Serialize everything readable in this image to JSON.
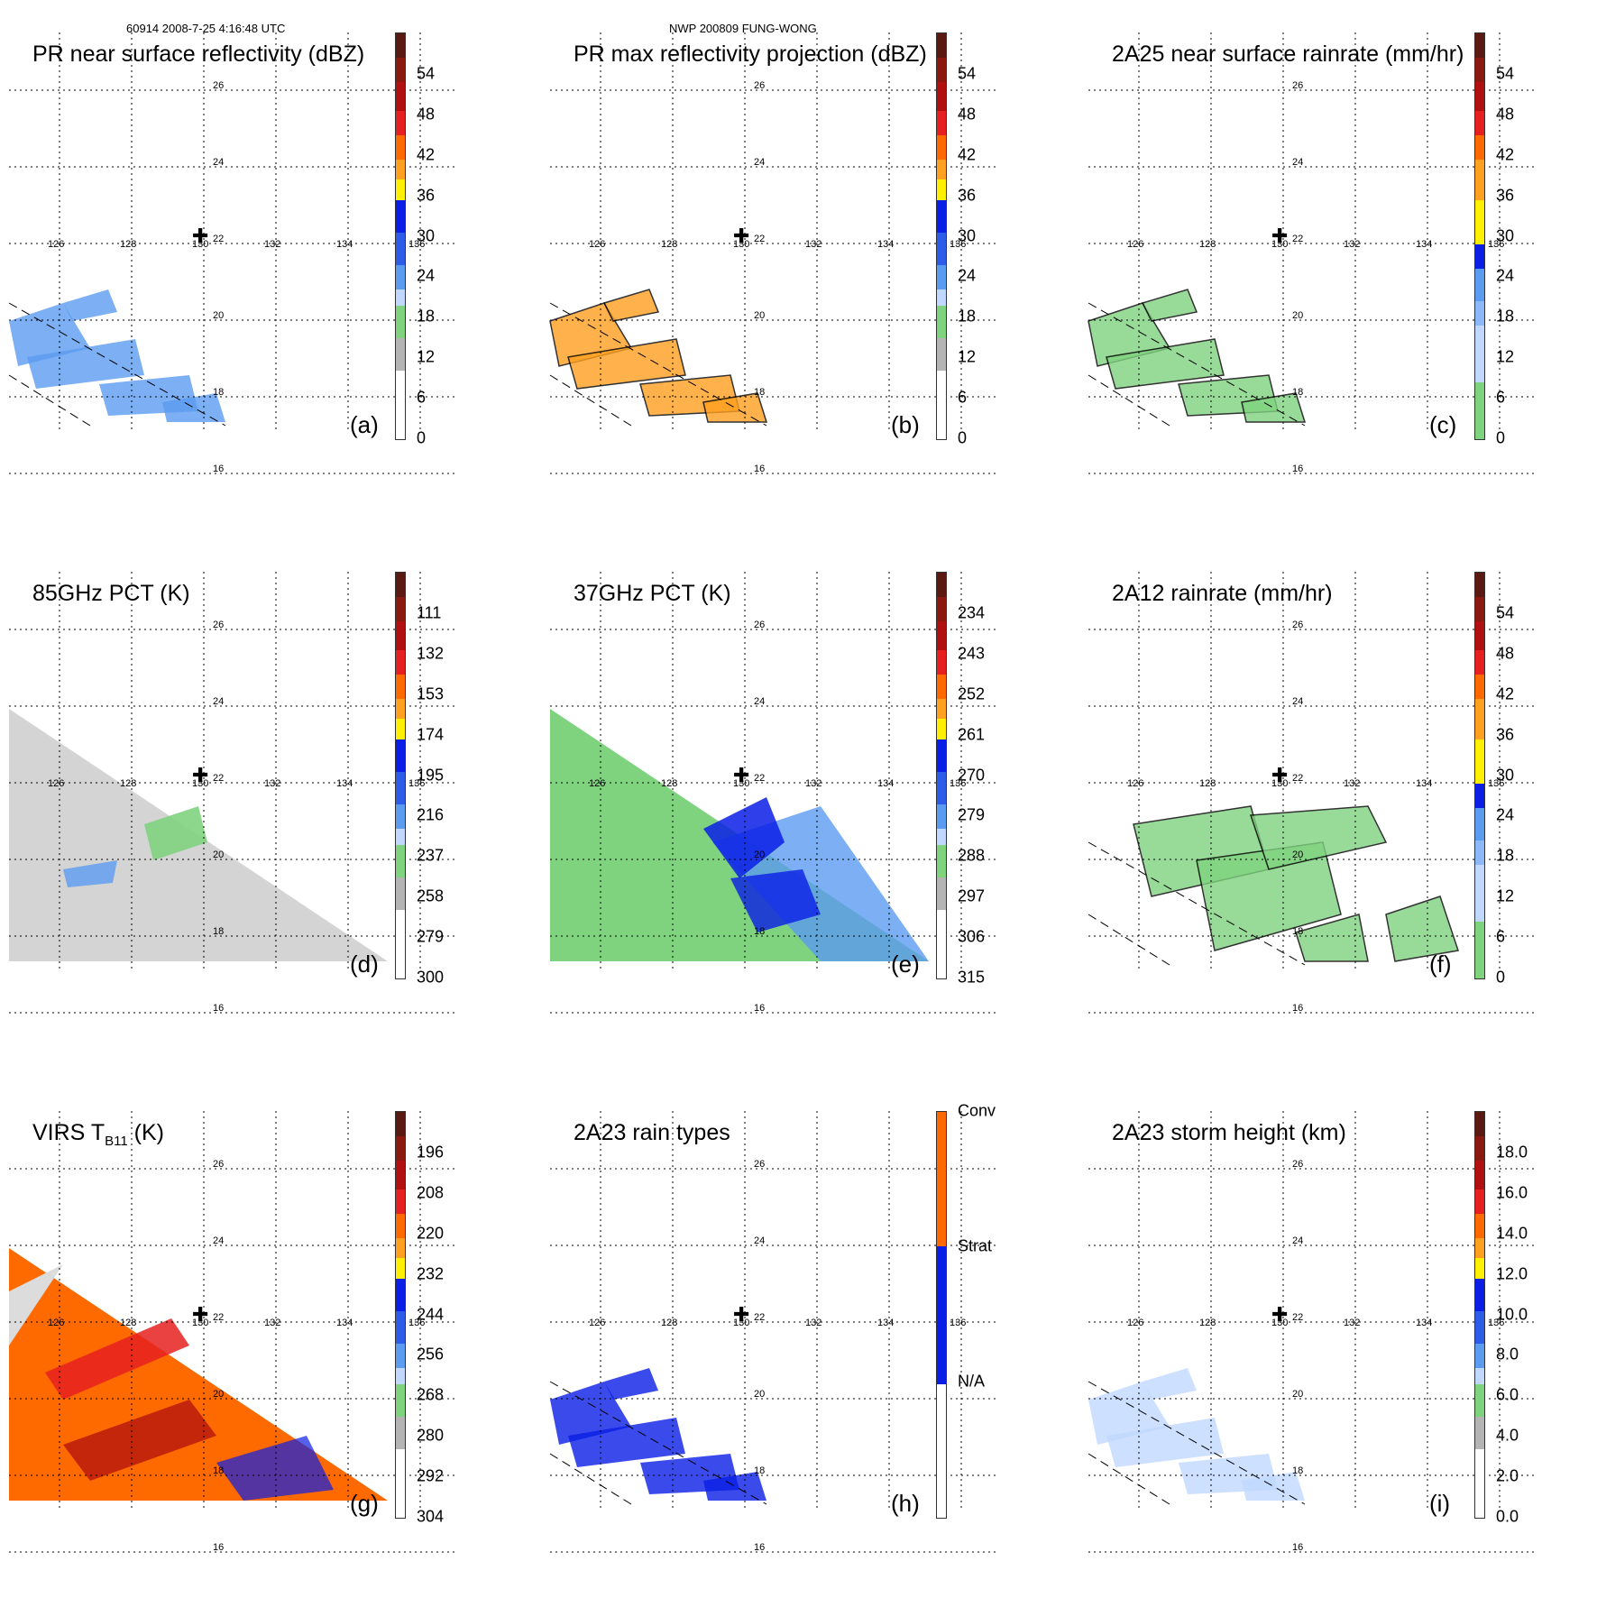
{
  "header": {
    "left": "60914 2008-7-25 4:16:48 UTC",
    "center": "NWP 200809 FUNG-WONG"
  },
  "map": {
    "lon_labels": [
      "126",
      "128",
      "130",
      "132",
      "134",
      "136"
    ],
    "lat_labels": [
      "26",
      "24",
      "22",
      "20",
      "18",
      "16"
    ],
    "storm_center_marker": "✚"
  },
  "colors": {
    "white": "#ffffff",
    "gray_light": "#dcdcdc",
    "gray_mid": "#b4b4b4",
    "green": "#7fd37f",
    "blue_light": "#c0d8ff",
    "blue_mid": "#5b9bf0",
    "blue_dark": "#0a1ee6",
    "yellow": "#ffef00",
    "orange_light": "#ffa020",
    "orange": "#ff6a00",
    "red": "#e62020",
    "red_dark": "#b01010",
    "brown": "#5a1a12"
  },
  "panels": [
    {
      "title": "PR near surface reflectivity (dBZ)",
      "label": "(a)",
      "ticks": [
        "54",
        "48",
        "42",
        "36",
        "30",
        "24",
        "18",
        "12",
        "6",
        "0"
      ]
    },
    {
      "title": "PR max reflectivity projection (dBZ)",
      "label": "(b)",
      "ticks": [
        "54",
        "48",
        "42",
        "36",
        "30",
        "24",
        "18",
        "12",
        "6",
        "0"
      ]
    },
    {
      "title": "2A25 near surface rainrate (mm/hr)",
      "label": "(c)",
      "ticks": [
        "54",
        "48",
        "42",
        "36",
        "30",
        "24",
        "18",
        "12",
        "6",
        "0"
      ]
    },
    {
      "title": "85GHz PCT (K)",
      "label": "(d)",
      "ticks": [
        "111",
        "132",
        "153",
        "174",
        "195",
        "216",
        "237",
        "258",
        "279",
        "300"
      ]
    },
    {
      "title": "37GHz PCT (K)",
      "label": "(e)",
      "ticks": [
        "234",
        "243",
        "252",
        "261",
        "270",
        "279",
        "288",
        "297",
        "306",
        "315"
      ]
    },
    {
      "title": "2A12 rainrate (mm/hr)",
      "label": "(f)",
      "ticks": [
        "54",
        "48",
        "42",
        "36",
        "30",
        "24",
        "18",
        "12",
        "6",
        "0"
      ]
    },
    {
      "title": "VIRS T",
      "title_sub": "B11",
      "title_after": " (K)",
      "label": "(g)",
      "ticks": [
        "196",
        "208",
        "220",
        "232",
        "244",
        "256",
        "268",
        "280",
        "292",
        "304"
      ]
    },
    {
      "title": "2A23 rain types",
      "label": "(h)",
      "ticks": [
        "Conv",
        "Strat",
        "N/A"
      ]
    },
    {
      "title": "2A23 storm height (km)",
      "label": "(i)",
      "ticks": [
        "18.0",
        "16.0",
        "14.0",
        "12.0",
        "10.0",
        "8.0",
        "6.0",
        "4.0",
        "2.0",
        "0.0"
      ]
    }
  ]
}
